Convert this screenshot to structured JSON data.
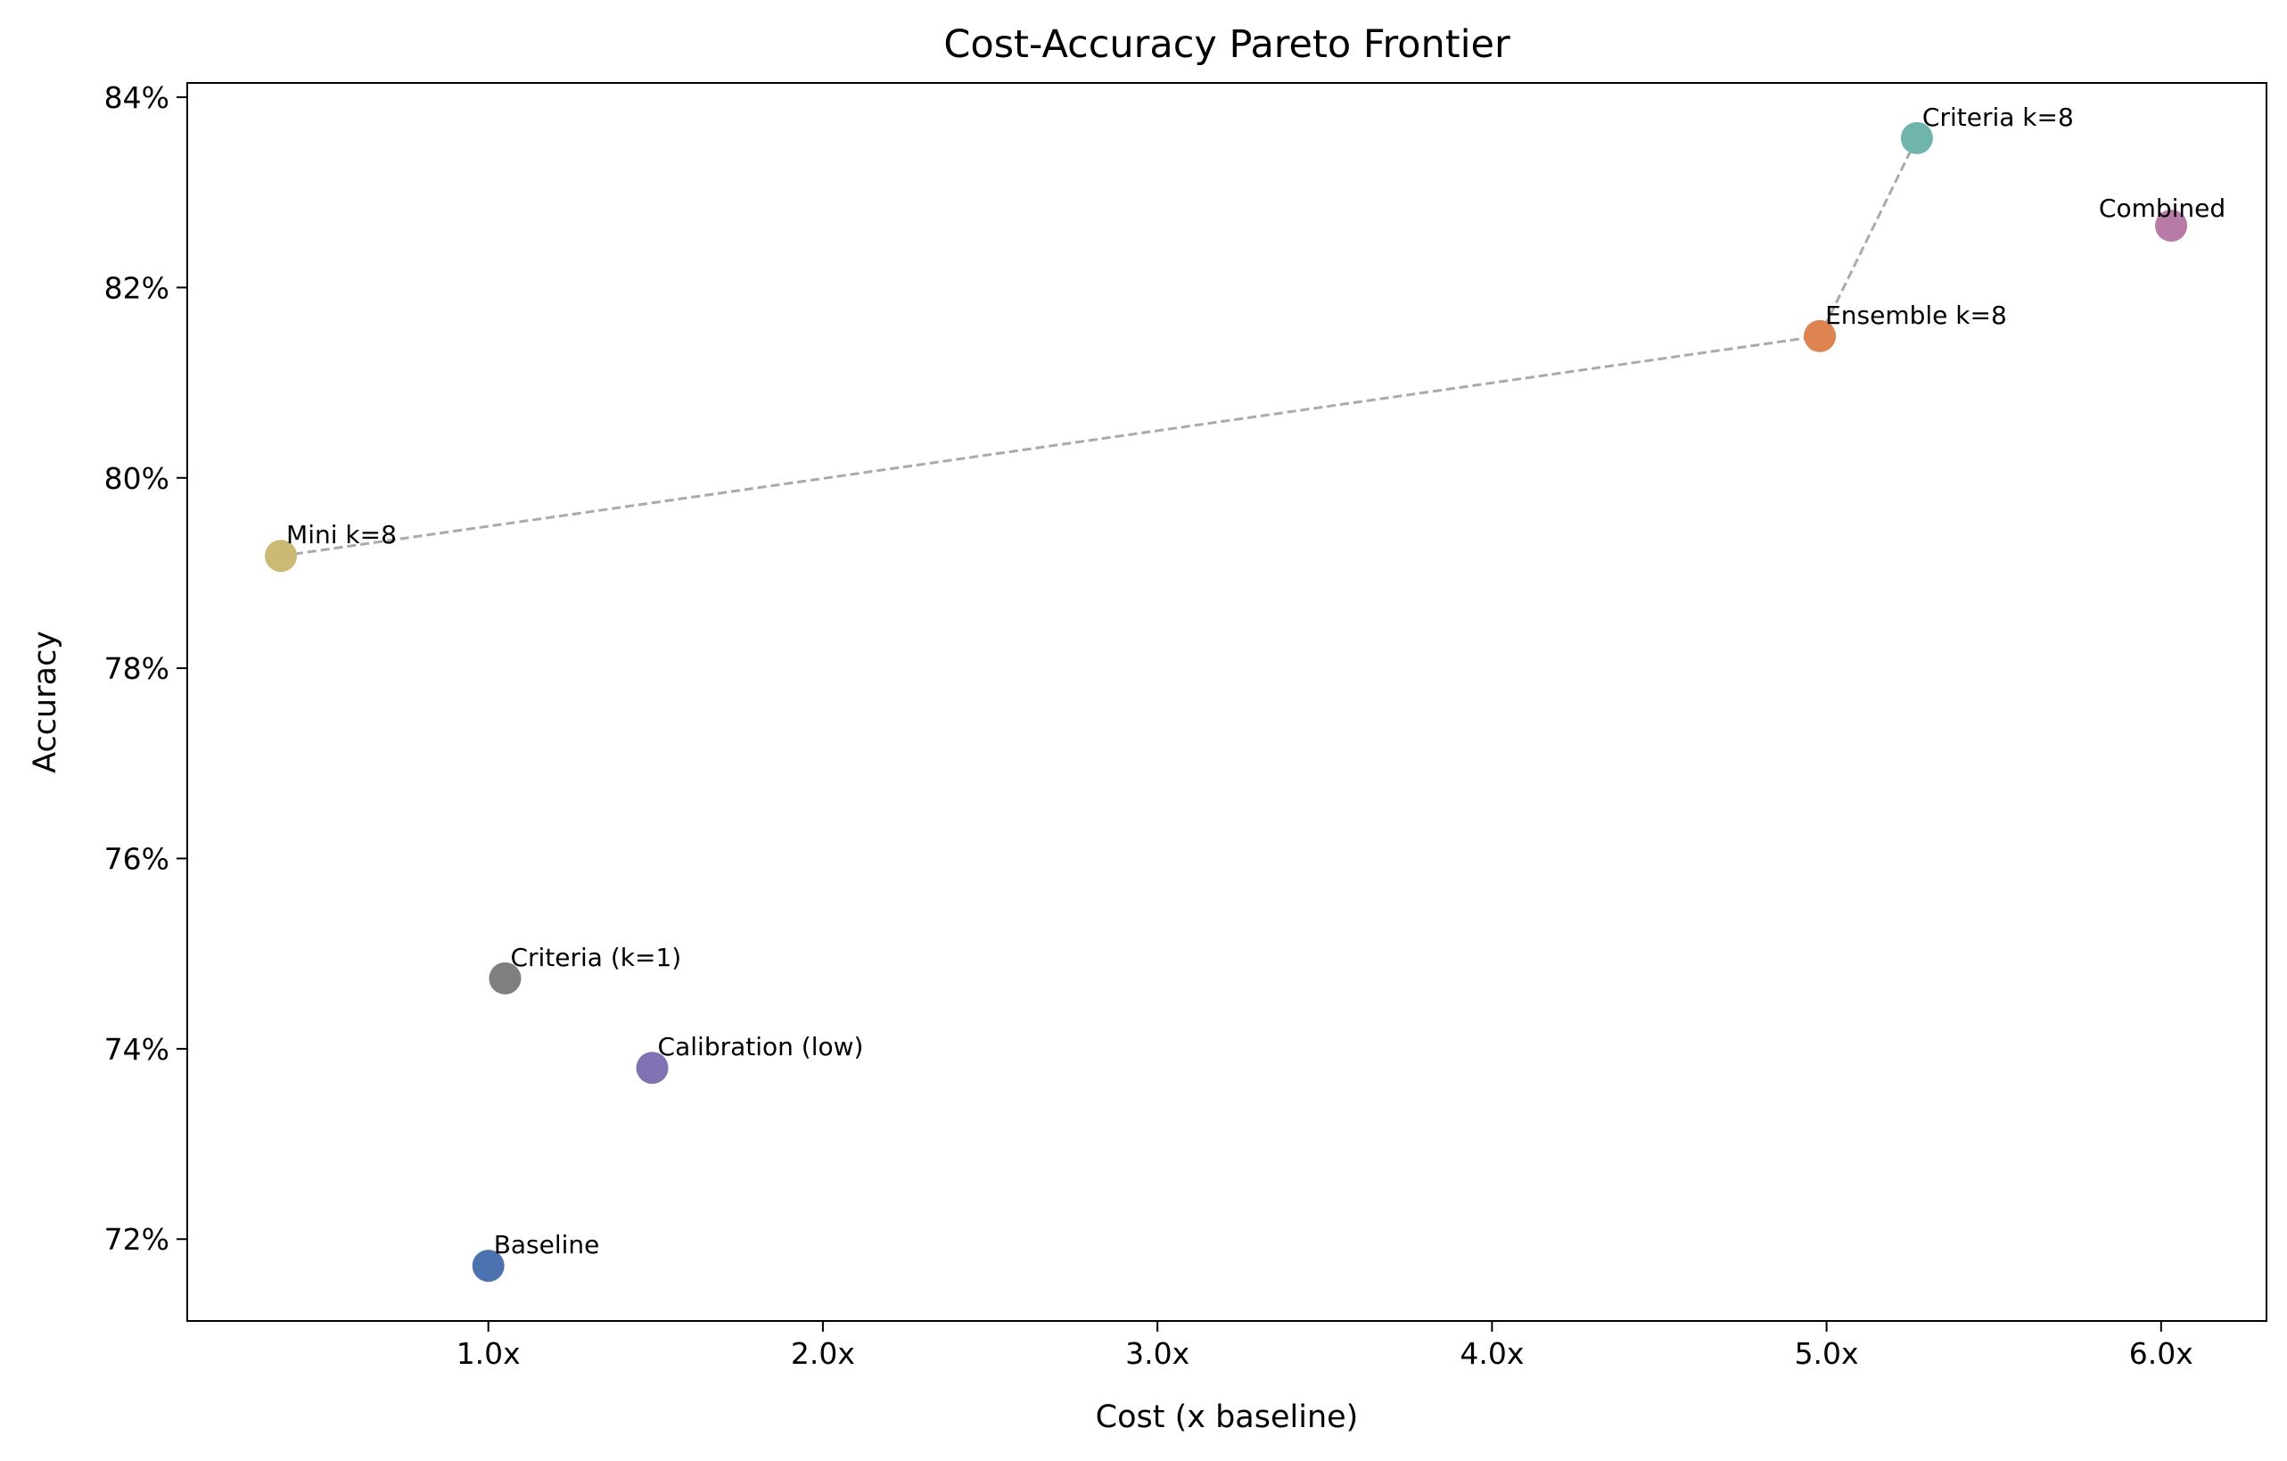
{
  "chart_data": {
    "type": "scatter",
    "title": "Cost-Accuracy Pareto Frontier",
    "x_label": "Cost (x baseline)",
    "y_label": "Accuracy",
    "xlim": [
      0.1,
      6.315
    ],
    "ylim": [
      71.14,
      84.15
    ],
    "xticks": [
      {
        "value": 1,
        "label": "1.0x"
      },
      {
        "value": 2,
        "label": "2.0x"
      },
      {
        "value": 3,
        "label": "3.0x"
      },
      {
        "value": 4,
        "label": "4.0x"
      },
      {
        "value": 5,
        "label": "5.0x"
      },
      {
        "value": 6,
        "label": "6.0x"
      }
    ],
    "yticks": [
      {
        "value": 72,
        "label": "72%"
      },
      {
        "value": 74,
        "label": "74%"
      },
      {
        "value": 76,
        "label": "76%"
      },
      {
        "value": 78,
        "label": "78%"
      },
      {
        "value": 80,
        "label": "80%"
      },
      {
        "value": 82,
        "label": "82%"
      },
      {
        "value": 84,
        "label": "84%"
      }
    ],
    "frontier_color": "#aaaaaa",
    "points": [
      {
        "name": "Baseline",
        "x": 1.0,
        "y": 71.72,
        "color": "#4c72b0",
        "on_frontier": false
      },
      {
        "name": "Criteria (k=1)",
        "x": 1.05,
        "y": 74.74,
        "color": "#7f7f7f",
        "on_frontier": false
      },
      {
        "name": "Calibration (low)",
        "x": 1.49,
        "y": 73.8,
        "color": "#8172b3",
        "on_frontier": false
      },
      {
        "name": "Mini k=8",
        "x": 0.38,
        "y": 79.18,
        "color": "#ccb974",
        "on_frontier": true
      },
      {
        "name": "Ensemble k=8",
        "x": 4.98,
        "y": 81.49,
        "color": "#dd8452",
        "on_frontier": true
      },
      {
        "name": "Criteria k=8",
        "x": 5.27,
        "y": 83.57,
        "color": "#6fb5ad",
        "on_frontier": true
      },
      {
        "name": "Combined",
        "x": 6.03,
        "y": 82.65,
        "color": "#b87ba6",
        "on_frontier": false
      }
    ]
  }
}
